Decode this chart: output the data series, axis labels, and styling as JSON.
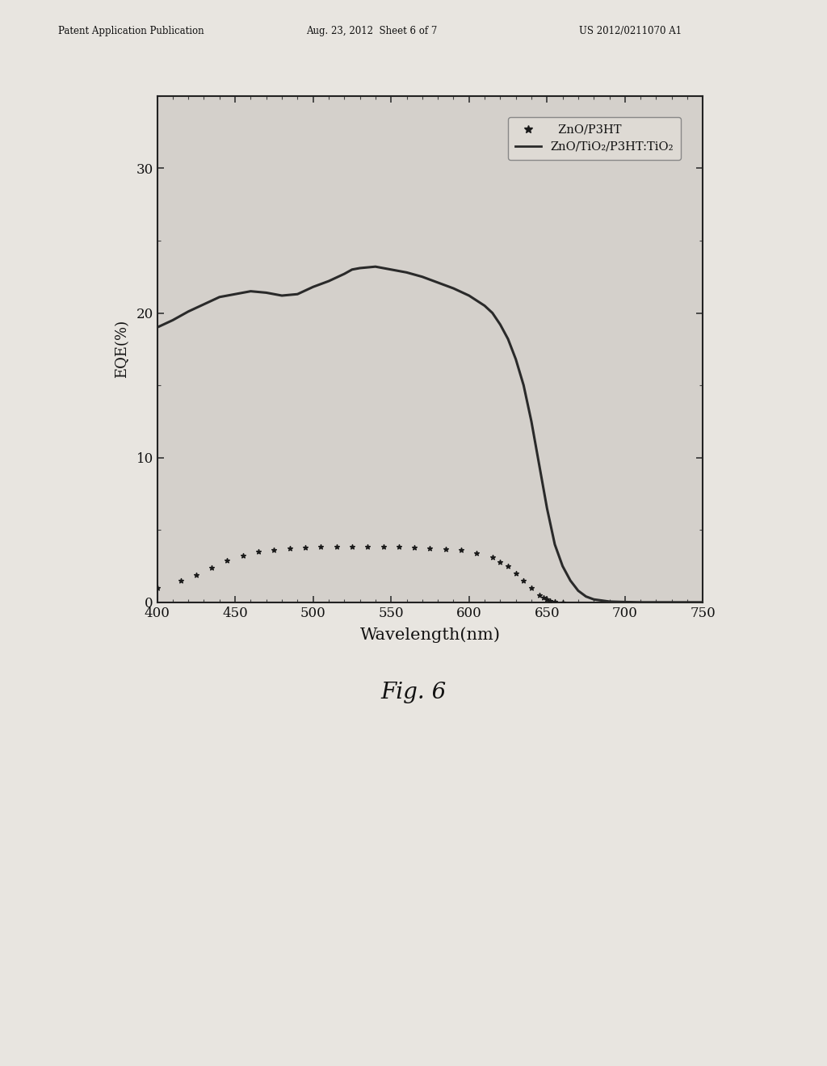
{
  "header_left": "Patent Application Publication",
  "header_center": "Aug. 23, 2012  Sheet 6 of 7",
  "header_right": "US 2012/0211070 A1",
  "fig_label": "Fig. 6",
  "xlabel": "Wavelength(nm)",
  "ylabel": "EQE(%)",
  "xlim": [
    400,
    750
  ],
  "ylim": [
    0,
    35
  ],
  "xticks": [
    400,
    450,
    500,
    550,
    600,
    650,
    700,
    750
  ],
  "yticks": [
    0,
    10,
    20,
    30
  ],
  "legend_line1": "  ZnO/P3HT",
  "legend_line2": "ZnO/TiO₂/P3HT:TiO₂",
  "page_color": "#e8e5e0",
  "outer_box_color": "#c8c5c0",
  "plot_bg": "#d4d0cb",
  "line_color": "#2a2a2a",
  "dot_color": "#1a1a1a",
  "curve1_x": [
    400,
    410,
    420,
    430,
    440,
    450,
    460,
    470,
    480,
    490,
    500,
    510,
    520,
    525,
    530,
    540,
    550,
    560,
    570,
    580,
    590,
    600,
    610,
    615,
    620,
    625,
    630,
    635,
    640,
    645,
    650,
    655,
    660,
    665,
    670,
    675,
    680,
    690,
    700,
    710,
    720,
    730,
    740,
    750
  ],
  "curve1_y": [
    19.0,
    19.5,
    20.1,
    20.6,
    21.1,
    21.3,
    21.5,
    21.4,
    21.2,
    21.3,
    21.8,
    22.2,
    22.7,
    23.0,
    23.1,
    23.2,
    23.0,
    22.8,
    22.5,
    22.1,
    21.7,
    21.2,
    20.5,
    20.0,
    19.2,
    18.2,
    16.8,
    15.0,
    12.5,
    9.5,
    6.5,
    4.0,
    2.5,
    1.5,
    0.8,
    0.4,
    0.2,
    0.05,
    0.02,
    0.0,
    0.0,
    0.0,
    0.0,
    0.0
  ],
  "curve2_x": [
    400,
    415,
    425,
    435,
    445,
    455,
    465,
    475,
    485,
    495,
    505,
    515,
    525,
    535,
    545,
    555,
    565,
    575,
    585,
    595,
    605,
    615,
    620,
    625,
    630,
    635,
    640,
    645,
    648,
    650,
    652,
    655,
    660
  ],
  "curve2_y": [
    1.0,
    1.5,
    1.9,
    2.4,
    2.9,
    3.2,
    3.5,
    3.6,
    3.75,
    3.8,
    3.85,
    3.85,
    3.85,
    3.85,
    3.85,
    3.85,
    3.8,
    3.75,
    3.7,
    3.6,
    3.4,
    3.1,
    2.8,
    2.5,
    2.0,
    1.5,
    1.0,
    0.5,
    0.3,
    0.2,
    0.1,
    0.05,
    0.0
  ]
}
